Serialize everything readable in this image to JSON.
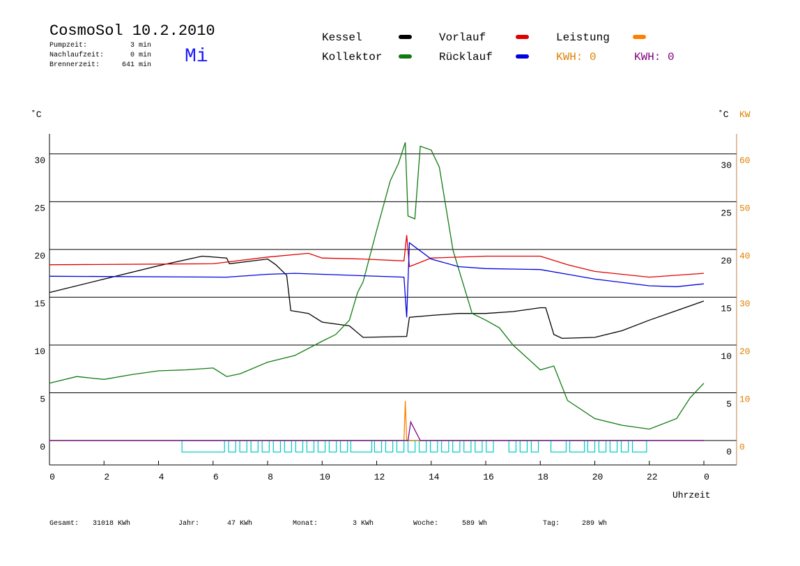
{
  "header": {
    "title": "CosmoSol 10.2.2010",
    "day": "Mi",
    "stats": [
      {
        "label": "Pumpzeit:",
        "value": "3 min"
      },
      {
        "label": "Nachlaufzeit:",
        "value": "0 min"
      },
      {
        "label": "Brennerzeit:",
        "value": "641 min"
      }
    ]
  },
  "footer": [
    {
      "label": "Gesamt:",
      "value": "31018 KWh"
    },
    {
      "label": "Jahr:",
      "value": "47 KWh"
    },
    {
      "label": "Monat:",
      "value": "3 KWh"
    },
    {
      "label": "Woche:",
      "value": "589 Wh"
    },
    {
      "label": "Tag:",
      "value": "289 Wh"
    }
  ],
  "chart_data": {
    "type": "line",
    "y_label": "˚C",
    "y2_label_left": "˚C",
    "y2_label": "KW",
    "x_label": "Uhrzeit",
    "xlim": [
      0,
      25.2
    ],
    "xticks": [
      0,
      2,
      4,
      6,
      8,
      10,
      12,
      14,
      16,
      18,
      20,
      22,
      {
        "value": 24,
        "label": "0"
      }
    ],
    "ylim": [
      -2.55,
      32.1
    ],
    "yticks": [
      0,
      5,
      10,
      15,
      20,
      25,
      30
    ],
    "y2lim": [
      -5.1,
      64.2
    ],
    "y2ticks": [
      0,
      10,
      20,
      30,
      40,
      50,
      60
    ],
    "grid": true,
    "series": [
      {
        "name": "Kessel",
        "color": "#000000",
        "x": [
          0,
          2,
          4,
          5.6,
          6.5,
          6.6,
          8,
          8.3,
          8.7,
          8.85,
          9.5,
          10,
          11,
          11.5,
          13.1,
          13.2,
          14,
          15,
          16,
          17,
          18,
          18.2,
          18.5,
          18.8,
          20,
          21,
          22,
          23,
          24
        ],
        "values": [
          15.5,
          16.9,
          18.3,
          19.3,
          19.1,
          18.5,
          19.0,
          18.4,
          17.3,
          13.6,
          13.3,
          12.4,
          12.0,
          10.8,
          10.9,
          12.9,
          13.1,
          13.3,
          13.3,
          13.5,
          13.9,
          13.9,
          11.1,
          10.7,
          10.8,
          11.5,
          12.6,
          13.6,
          14.6
        ]
      },
      {
        "name": "Kollektor",
        "color": "#107a10",
        "x": [
          0,
          1,
          2,
          3,
          4,
          5,
          6,
          6.5,
          7,
          8,
          9,
          10,
          10.5,
          11,
          11.3,
          11.5,
          12,
          12.5,
          12.8,
          13.05,
          13.15,
          13.4,
          13.6,
          14,
          14.3,
          14.8,
          15.5,
          16,
          16.5,
          17,
          18,
          18.5,
          19,
          20,
          21,
          22,
          23,
          23.5,
          24
        ],
        "values": [
          6.0,
          6.7,
          6.4,
          6.9,
          7.3,
          7.4,
          7.6,
          6.7,
          7.0,
          8.2,
          8.9,
          10.4,
          11.1,
          12.6,
          15.5,
          16.6,
          22.0,
          27.2,
          29.0,
          31.2,
          23.5,
          23.2,
          30.8,
          30.4,
          28.6,
          19.9,
          13.3,
          12.6,
          11.8,
          10.0,
          7.4,
          7.8,
          4.2,
          2.3,
          1.6,
          1.2,
          2.3,
          4.5,
          6.0
        ]
      },
      {
        "name": "Vorlauf",
        "color": "#e00000",
        "x": [
          0,
          6,
          8,
          9.5,
          10,
          11.5,
          13,
          13.1,
          13.2,
          14,
          16,
          18,
          19,
          20,
          22,
          24
        ],
        "values": [
          18.4,
          18.5,
          19.2,
          19.6,
          19.1,
          19.0,
          18.8,
          21.5,
          18.2,
          19.1,
          19.3,
          19.3,
          18.4,
          17.7,
          17.1,
          17.5
        ]
      },
      {
        "name": "Rücklauf",
        "color": "#0000e0",
        "x": [
          0,
          6.5,
          8,
          9,
          11,
          13,
          13.1,
          13.2,
          14,
          15,
          16,
          18,
          19,
          20,
          22,
          23,
          24
        ],
        "values": [
          17.2,
          17.1,
          17.4,
          17.5,
          17.3,
          17.1,
          12.9,
          20.7,
          19.0,
          18.2,
          18.0,
          17.9,
          17.4,
          16.9,
          16.2,
          16.1,
          16.4
        ]
      },
      {
        "name": "Leistung",
        "color": "#ff8000",
        "axis": "y2",
        "x": [
          0,
          13.0,
          13.05,
          13.1,
          24
        ],
        "values": [
          0,
          0,
          8.3,
          0,
          0
        ]
      },
      {
        "color": "#800080",
        "axis": "y2",
        "x": [
          0,
          13.15,
          13.25,
          13.6,
          24
        ],
        "values": [
          0,
          0,
          3.9,
          0,
          0
        ]
      }
    ],
    "kwh_labels": [
      {
        "label": "KWH: 0",
        "color": "#e08000"
      },
      {
        "label": "KWH: 0",
        "color": "#800080"
      }
    ],
    "pump": {
      "color": "#00c8c8",
      "low": -1.2,
      "intervals": [
        [
          4.86,
          6.42
        ],
        [
          6.57,
          6.83
        ],
        [
          6.98,
          7.24
        ],
        [
          7.39,
          7.65
        ],
        [
          7.8,
          8.06
        ],
        [
          8.21,
          8.47
        ],
        [
          8.62,
          8.88
        ],
        [
          9.03,
          9.29
        ],
        [
          9.44,
          9.7
        ],
        [
          9.85,
          10.11
        ],
        [
          10.26,
          10.52
        ],
        [
          10.67,
          10.93
        ],
        [
          11.05,
          11.82
        ],
        [
          11.92,
          12.18
        ],
        [
          12.33,
          12.59
        ],
        [
          12.74,
          13.0
        ],
        [
          13.15,
          13.41
        ],
        [
          13.56,
          13.82
        ],
        [
          13.97,
          14.23
        ],
        [
          14.38,
          14.64
        ],
        [
          14.79,
          15.05
        ],
        [
          15.2,
          15.46
        ],
        [
          15.61,
          15.87
        ],
        [
          16.02,
          16.28
        ],
        [
          16.85,
          17.11
        ],
        [
          17.26,
          17.52
        ],
        [
          17.67,
          17.93
        ],
        [
          18.39,
          18.95
        ],
        [
          19.08,
          19.62
        ],
        [
          19.74,
          20.0
        ],
        [
          20.15,
          20.41
        ],
        [
          20.56,
          20.82
        ],
        [
          20.97,
          21.23
        ],
        [
          21.38,
          21.9
        ]
      ]
    }
  }
}
